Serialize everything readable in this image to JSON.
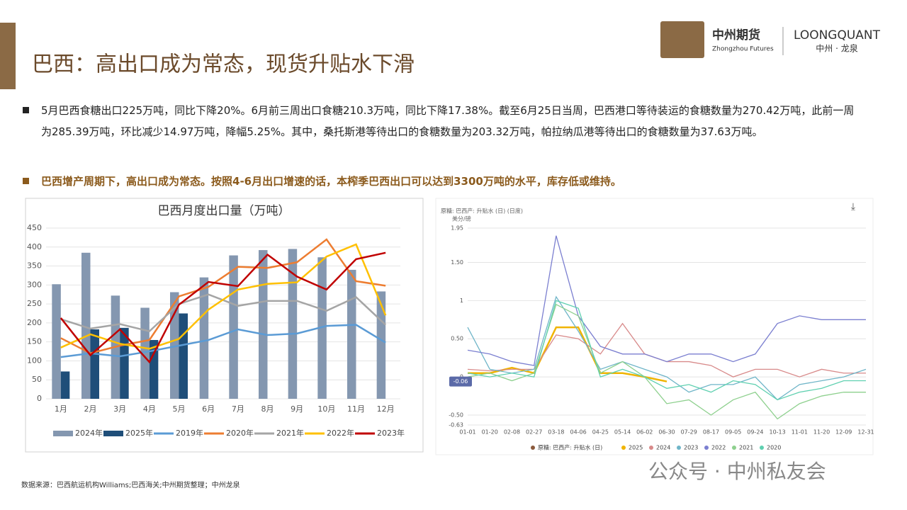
{
  "header": {
    "title": "巴西：高出口成为常态，现货升贴水下滑",
    "logo_cn": "中州期货",
    "logo_en": "Zhongzhou Futures",
    "brand": "LOONGQUANT",
    "brand_sub": "中州 · 龙泉"
  },
  "bullets": [
    "5月巴西食糖出口225万吨，同比下降20%。6月前三周出口食糖210.3万吨，同比下降17.38%。截至6月25日当周，巴西港口等待装运的食糖数量为270.42万吨，此前一周为285.39万吨，环比减少14.97万吨，降幅5.25%。其中，桑托斯港等待出口的食糖数量为203.32万吨，帕拉纳瓜港等待出口的食糖数量为37.63万吨。",
    "巴西增产周期下，高出口成为常态。按照4-6月出口增速的话，本榨季巴西出口可以达到3300万吨的水平，库存低或维持。"
  ],
  "chart_data": [
    {
      "type": "combo",
      "title": "巴西月度出口量（万吨）",
      "categories": [
        "1月",
        "2月",
        "3月",
        "4月",
        "5月",
        "6月",
        "7月",
        "8月",
        "9月",
        "10月",
        "11月",
        "12月"
      ],
      "ylim": [
        0,
        450
      ],
      "yticks": [
        0,
        50,
        100,
        150,
        200,
        250,
        300,
        350,
        400,
        450
      ],
      "grid": true,
      "series": [
        {
          "name": "2024年",
          "type": "bar",
          "color": "#8497b0",
          "values": [
            302,
            385,
            272,
            240,
            281,
            320,
            378,
            392,
            395,
            373,
            340,
            283
          ]
        },
        {
          "name": "2025年",
          "type": "bar",
          "color": "#1f4e79",
          "values": [
            72,
            183,
            187,
            155,
            225,
            null,
            null,
            null,
            null,
            null,
            null,
            null
          ]
        },
        {
          "name": "2019年",
          "type": "line",
          "color": "#5b9bd5",
          "values": [
            110,
            120,
            112,
            125,
            140,
            155,
            183,
            168,
            172,
            192,
            195,
            148
          ]
        },
        {
          "name": "2020年",
          "type": "line",
          "color": "#ed7d31",
          "values": [
            160,
            120,
            140,
            155,
            270,
            295,
            348,
            345,
            360,
            420,
            310,
            298
          ]
        },
        {
          "name": "2021年",
          "type": "line",
          "color": "#a5a5a5",
          "values": [
            210,
            185,
            197,
            178,
            250,
            275,
            245,
            258,
            258,
            232,
            268,
            195
          ]
        },
        {
          "name": "2022年",
          "type": "line",
          "color": "#ffc000",
          "values": [
            135,
            170,
            145,
            132,
            158,
            235,
            288,
            303,
            307,
            375,
            407,
            220
          ]
        },
        {
          "name": "2023年",
          "type": "line",
          "color": "#c00000",
          "values": [
            213,
            115,
            183,
            97,
            248,
            308,
            297,
            380,
            322,
            288,
            368,
            385
          ]
        }
      ]
    },
    {
      "type": "line",
      "title": "原糖: 巴西产: 升贴水 (日) (日度)",
      "y_label": "美分/磅",
      "legend_title": "原糖: 巴西产: 升贴水 (日)",
      "legend_color": "#8b5a3c",
      "categories": [
        "01-01",
        "01-20",
        "02-08",
        "02-27",
        "03-18",
        "04-06",
        "04-25",
        "05-14",
        "06-02",
        "06-30",
        "07-29",
        "08-17",
        "09-05",
        "09-24",
        "10-13",
        "11-01",
        "11-20",
        "12-09",
        "12-31"
      ],
      "ylim": [
        -0.63,
        1.95
      ],
      "yticks": [
        -0.63,
        {
          "value": -0.5,
          "label": "-0.50"
        },
        0,
        {
          "value": 0.5,
          "label": "0.50"
        },
        1,
        {
          "value": 1.5,
          "label": "1.50"
        },
        1.95
      ],
      "grid": true,
      "annotation": -0.06,
      "series": [
        {
          "name": "2025",
          "color": "#f0b400",
          "values": [
            0.05,
            0.05,
            0.12,
            0.05,
            0.65,
            0.65,
            0.05,
            0.05,
            0,
            -0.06,
            null,
            null,
            null,
            null,
            null,
            null,
            null,
            null,
            null
          ]
        },
        {
          "name": "2024",
          "color": "#d88a8a",
          "values": [
            0.1,
            0.08,
            0.1,
            0.1,
            0.55,
            0.5,
            0.3,
            0.7,
            0.3,
            0.2,
            0.2,
            0.15,
            0,
            0.1,
            0.1,
            0,
            0.1,
            0.05,
            0.05
          ]
        },
        {
          "name": "2023",
          "color": "#6fb5c8",
          "values": [
            0.65,
            0.1,
            0.05,
            0.1,
            1.05,
            0.6,
            0.1,
            0.2,
            0.1,
            0,
            -0.2,
            -0.1,
            -0.1,
            0,
            -0.3,
            -0.1,
            -0.05,
            0,
            0.1
          ]
        },
        {
          "name": "2022",
          "color": "#7b7fd0",
          "values": [
            0.35,
            0.3,
            0.2,
            0.15,
            1.85,
            0.8,
            0.4,
            0.3,
            0.3,
            0.2,
            0.3,
            0.3,
            0.2,
            0.3,
            0.7,
            0.8,
            0.75,
            0.75,
            0.75
          ]
        },
        {
          "name": "2021",
          "color": "#8ed08e",
          "values": [
            0,
            0.05,
            -0.05,
            0.05,
            0.95,
            0.8,
            0.05,
            0.2,
            0,
            -0.35,
            -0.3,
            -0.5,
            -0.3,
            -0.2,
            -0.55,
            -0.35,
            -0.25,
            -0.2,
            -0.2
          ]
        },
        {
          "name": "2020",
          "color": "#5fd0b0",
          "values": [
            0.05,
            0,
            0.05,
            0,
            1,
            0.9,
            0,
            0.1,
            0,
            -0.15,
            -0.1,
            -0.2,
            -0.05,
            -0.1,
            -0.3,
            -0.2,
            -0.15,
            -0.05,
            -0.05
          ]
        }
      ]
    }
  ],
  "footer": {
    "source": "数据来源：巴西航运机构Williams;巴西海关;中州期货整理；中州龙泉",
    "watermark": "公众号 · 中州私友会"
  }
}
